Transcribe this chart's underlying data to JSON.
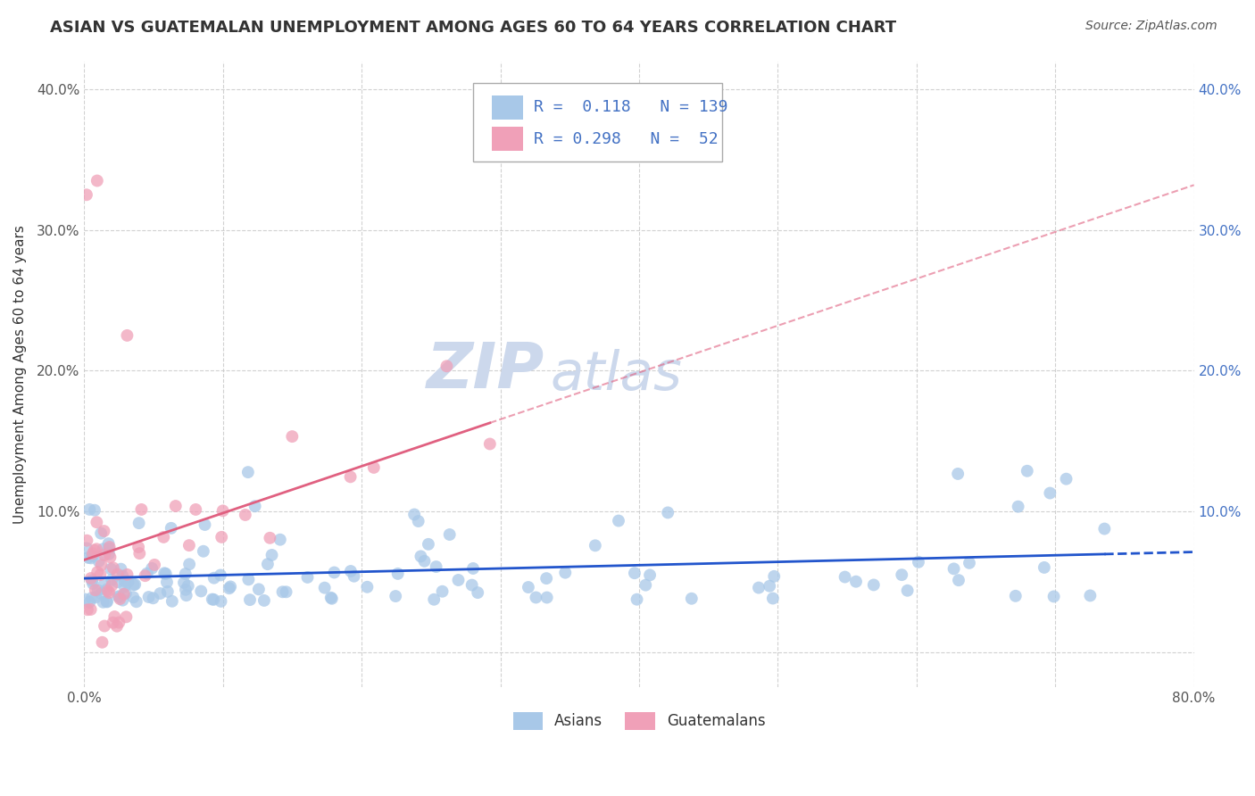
{
  "title": "ASIAN VS GUATEMALAN UNEMPLOYMENT AMONG AGES 60 TO 64 YEARS CORRELATION CHART",
  "source": "Source: ZipAtlas.com",
  "ylabel": "Unemployment Among Ages 60 to 64 years",
  "xlim": [
    0.0,
    0.8
  ],
  "ylim": [
    -0.025,
    0.42
  ],
  "xticks": [
    0.0,
    0.1,
    0.2,
    0.3,
    0.4,
    0.5,
    0.6,
    0.7,
    0.8
  ],
  "xticklabels": [
    "0.0%",
    "",
    "",
    "",
    "",
    "",
    "",
    "",
    "80.0%"
  ],
  "yticks": [
    0.0,
    0.1,
    0.2,
    0.3,
    0.4
  ],
  "yticklabels_left": [
    "",
    "10.0%",
    "20.0%",
    "30.0%",
    "40.0%"
  ],
  "yticklabels_right": [
    "",
    "10.0%",
    "20.0%",
    "30.0%",
    "40.0%"
  ],
  "asian_color": "#a8c8e8",
  "guatemalan_color": "#f0a0b8",
  "asian_line_color": "#2255cc",
  "guatemalan_line_color": "#e06080",
  "R_asian": 0.118,
  "N_asian": 139,
  "R_guatemalan": 0.298,
  "N_guatemalan": 52,
  "background_color": "#ffffff",
  "grid_color": "#cccccc",
  "watermark_zip": "ZIP",
  "watermark_atlas": "atlas",
  "title_fontsize": 13,
  "axis_label_fontsize": 11,
  "tick_fontsize": 11,
  "legend_fontsize": 13,
  "right_ytick_color": "#4472c4",
  "left_ytick_color": "#555555"
}
